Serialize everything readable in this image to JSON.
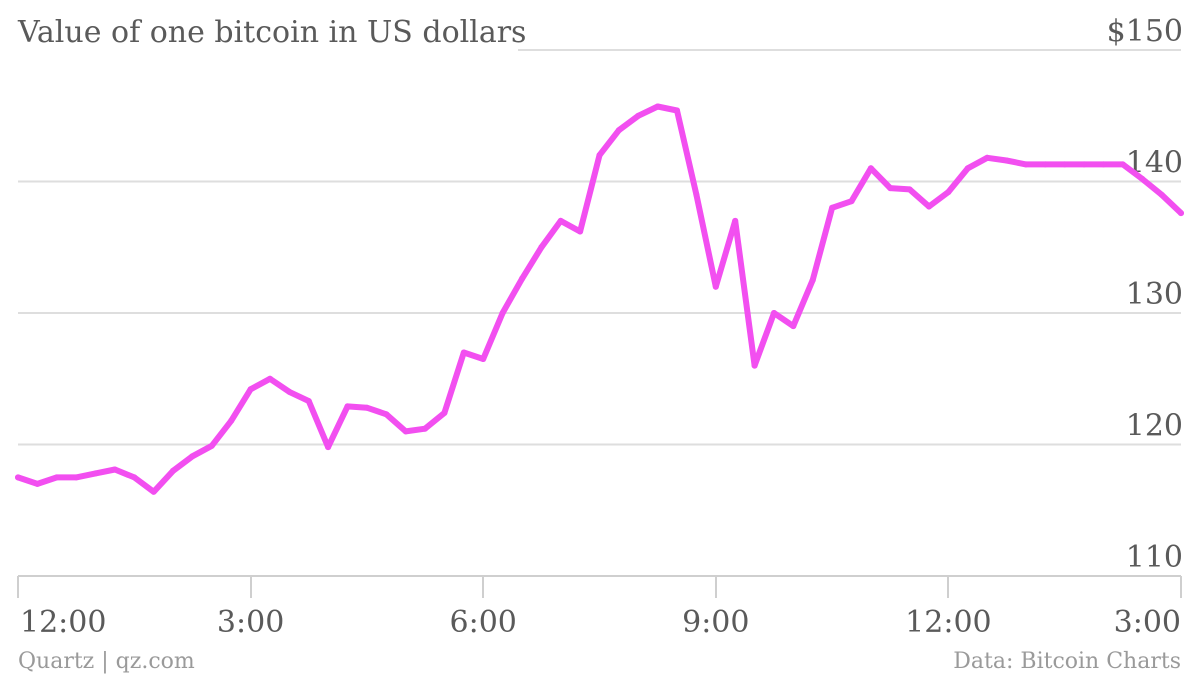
{
  "chart_data": {
    "type": "line",
    "title": "Value of one bitcoin in US dollars",
    "y_tick_labels": [
      "$150",
      "140",
      "130",
      "120",
      "110"
    ],
    "y_tick_values": [
      150,
      140,
      130,
      120,
      110
    ],
    "ylim": [
      110,
      150
    ],
    "x_tick_labels": [
      "12:00",
      "3:00",
      "6:00",
      "9:00",
      "12:00",
      "3:00"
    ],
    "x_tick_values": [
      0,
      3,
      6,
      9,
      12,
      15
    ],
    "xlim": [
      0,
      15
    ],
    "grid": true,
    "line_color": "#f24ff0",
    "series": [
      {
        "x": [
          0,
          0.25,
          0.5,
          0.75,
          1.0,
          1.25,
          1.5,
          1.75,
          2.0,
          2.25,
          2.5,
          2.75,
          3.0,
          3.25,
          3.5,
          3.75,
          4.0,
          4.25,
          4.5,
          4.75,
          5.0,
          5.25,
          5.5,
          5.75,
          6.0,
          6.25,
          6.5,
          6.75,
          7.0,
          7.25,
          7.5,
          7.75,
          8.0,
          8.25,
          8.5,
          8.75,
          9.0,
          9.25,
          9.5,
          9.75,
          10.0,
          10.25,
          10.5,
          10.75,
          11.0,
          11.25,
          11.5,
          11.75,
          12.0,
          12.25,
          12.5,
          12.75,
          13.0,
          13.25,
          13.5,
          13.75,
          14.0,
          14.25,
          14.5,
          14.75,
          15.0
        ],
        "values": [
          117.5,
          117.0,
          117.5,
          117.5,
          117.8,
          118.1,
          117.5,
          116.4,
          118.0,
          119.1,
          119.9,
          121.8,
          124.2,
          125.0,
          124.0,
          123.3,
          119.8,
          122.9,
          122.8,
          122.3,
          121.0,
          121.2,
          122.4,
          127.0,
          126.5,
          130.0,
          132.6,
          135.0,
          137.0,
          136.2,
          142.0,
          143.9,
          145.0,
          145.7,
          145.4,
          139.0,
          132.0,
          137.0,
          126.0,
          130.0,
          129.0,
          132.5,
          138.0,
          138.5,
          141.0,
          139.5,
          139.4,
          138.1,
          139.2,
          141.0,
          141.8,
          141.6,
          141.3,
          141.3,
          141.3,
          141.3,
          141.3,
          141.3,
          140.2,
          139.0,
          137.6
        ]
      }
    ]
  },
  "footer": {
    "source_left": "Quartz | qz.com",
    "source_right": "Data: Bitcoin Charts"
  }
}
